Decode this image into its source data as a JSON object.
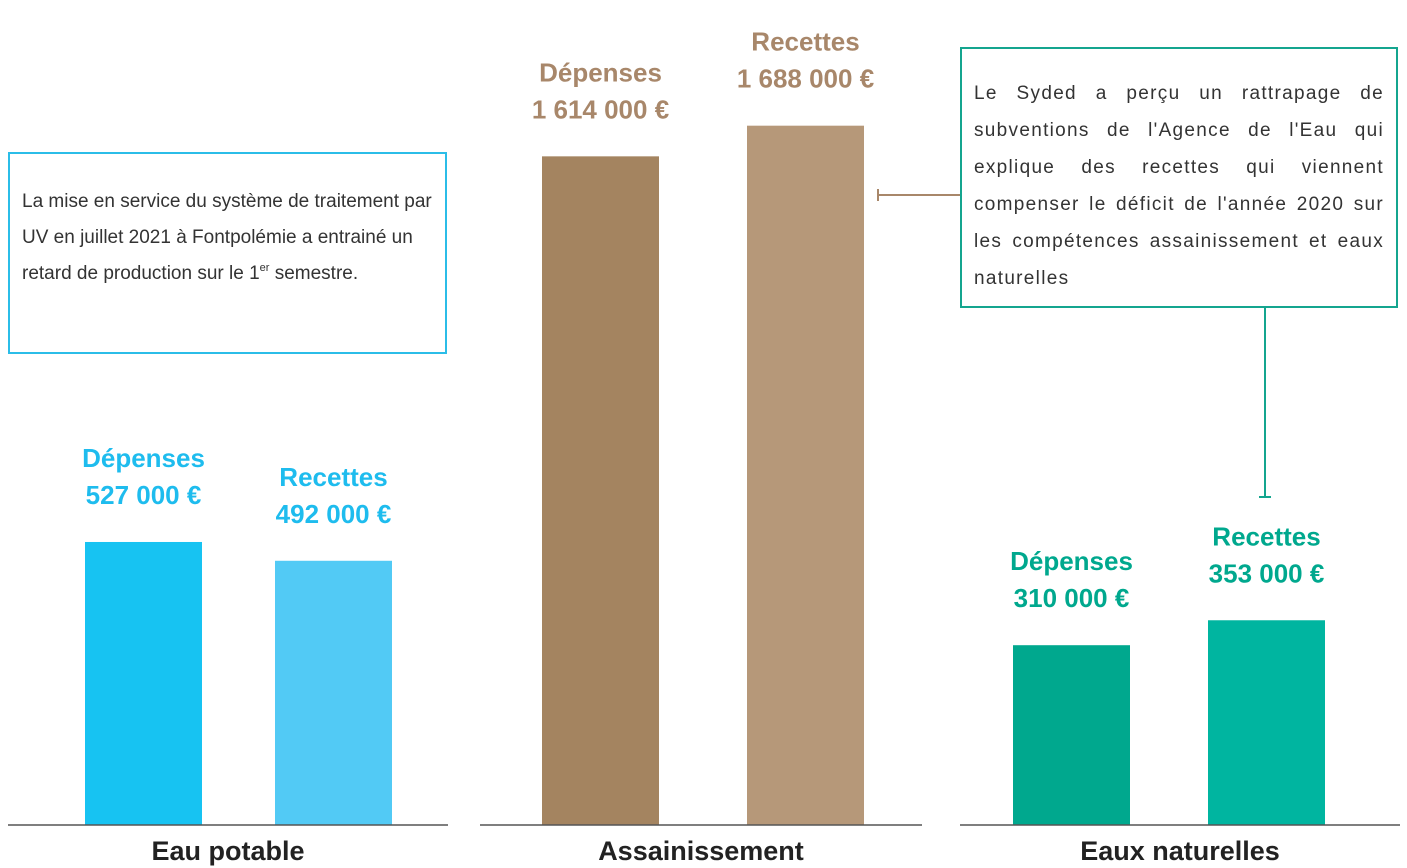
{
  "chart_data": [
    {
      "type": "bar",
      "title": "Eau potable",
      "categories": [
        "Dépenses",
        "Recettes"
      ],
      "values": [
        527000,
        492000
      ],
      "value_labels": [
        "527 000 €",
        "492 000 €"
      ],
      "colors": [
        "#17c3f2",
        "#52caf5"
      ],
      "label_color": "#1ebcee",
      "ylim": [
        0,
        1350000
      ],
      "note": {
        "text": "La mise en service du système de traitement par UV en juillet 2021 à Fontpolémie a entrainé un retard de production sur le 1",
        "sup": "er",
        "tail": "semestre."
      }
    },
    {
      "type": "bar",
      "title": "Assainissement",
      "categories": [
        "Dépenses",
        "Recettes"
      ],
      "values": [
        1614000,
        1688000
      ],
      "value_labels": [
        "1 614 000 €",
        "1 688 000 €"
      ],
      "colors": [
        "#a48460",
        "#b69879"
      ],
      "label_color": "#a8876a",
      "ylim": [
        0,
        1750000
      ]
    },
    {
      "type": "bar",
      "title": "Eaux naturelles",
      "categories": [
        "Dépenses",
        "Recettes"
      ],
      "values": [
        310000,
        353000
      ],
      "value_labels": [
        "310 000 €",
        "353 000 €"
      ],
      "colors": [
        "#00a88e",
        "#00b5a0"
      ],
      "label_color": "#00a88e",
      "ylim": [
        0,
        1250000
      ],
      "note": {
        "text": "Le Syded a perçu un rattrapage de subventions de l'Agence de l'Eau qui explique des recettes qui viennent compenser le déficit de l'année 2020 sur les compétences assainissement et eaux naturelles"
      }
    }
  ]
}
